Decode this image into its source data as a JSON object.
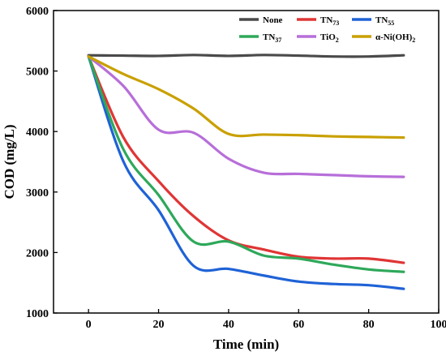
{
  "chart_data": {
    "type": "line",
    "title": "",
    "xlabel": "Time (min)",
    "ylabel": "COD (mg/L)",
    "xlim": [
      -10,
      100
    ],
    "ylim": [
      1000,
      6000
    ],
    "xticks": [
      0,
      20,
      40,
      60,
      80,
      100
    ],
    "yticks": [
      1000,
      2000,
      3000,
      4000,
      5000,
      6000
    ],
    "grid": false,
    "legend_position": "top-right",
    "series": [
      {
        "name": "None",
        "legend": {
          "main": "None",
          "sub": ""
        },
        "color": "#4a4a4a",
        "x": [
          0,
          10,
          20,
          30,
          40,
          50,
          60,
          70,
          80,
          90
        ],
        "y": [
          5260,
          5255,
          5250,
          5265,
          5250,
          5265,
          5255,
          5240,
          5240,
          5260
        ]
      },
      {
        "name": "TN73",
        "legend": {
          "main": "TN",
          "sub": "73"
        },
        "color": "#e03535",
        "x": [
          0,
          10,
          20,
          30,
          40,
          50,
          60,
          70,
          80,
          90
        ],
        "y": [
          5240,
          3900,
          3180,
          2600,
          2200,
          2050,
          1930,
          1900,
          1900,
          1830
        ]
      },
      {
        "name": "TN55",
        "legend": {
          "main": "TN",
          "sub": "55"
        },
        "color": "#1f62d6",
        "x": [
          0,
          10,
          20,
          30,
          40,
          50,
          60,
          70,
          80,
          90
        ],
        "y": [
          5240,
          3500,
          2700,
          1780,
          1730,
          1620,
          1520,
          1480,
          1460,
          1400
        ]
      },
      {
        "name": "TN37",
        "legend": {
          "main": "TN",
          "sub": "37"
        },
        "color": "#2ea85a",
        "x": [
          0,
          10,
          20,
          30,
          40,
          50,
          60,
          70,
          80,
          90
        ],
        "y": [
          5240,
          3700,
          2950,
          2180,
          2180,
          1950,
          1900,
          1800,
          1720,
          1680
        ]
      },
      {
        "name": "TiO2",
        "legend": {
          "main": "TiO",
          "sub": "2"
        },
        "color": "#b76fd9",
        "x": [
          0,
          10,
          20,
          30,
          40,
          50,
          60,
          70,
          80,
          90
        ],
        "y": [
          5240,
          4750,
          4030,
          3980,
          3550,
          3320,
          3300,
          3280,
          3260,
          3250
        ]
      },
      {
        "name": "α-Ni(OH)2",
        "legend": {
          "main": "α-Ni(OH)",
          "sub": "2"
        },
        "color": "#c9a000",
        "x": [
          0,
          10,
          20,
          30,
          40,
          50,
          60,
          70,
          80,
          90
        ],
        "y": [
          5240,
          4950,
          4700,
          4380,
          3960,
          3950,
          3940,
          3920,
          3910,
          3900
        ]
      }
    ]
  }
}
